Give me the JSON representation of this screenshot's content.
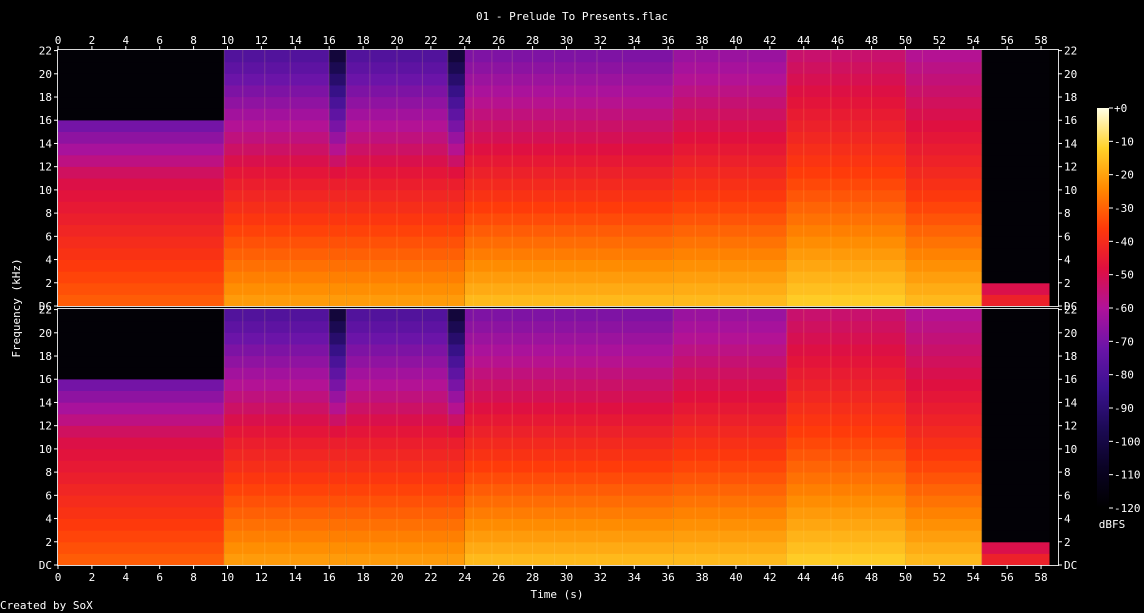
{
  "chart_data": {
    "type": "heatmap",
    "title": "01 - Prelude To Presents.flac",
    "xlabel": "Time (s)",
    "ylabel": "Frequency (kHz)",
    "colorbar_label": "dBFS",
    "footer": "Created by SoX",
    "x_ticks": [
      "0",
      "2",
      "4",
      "6",
      "8",
      "10",
      "12",
      "14",
      "16",
      "18",
      "20",
      "22",
      "24",
      "26",
      "28",
      "30",
      "32",
      "34",
      "36",
      "38",
      "40",
      "42",
      "44",
      "46",
      "48",
      "50",
      "52",
      "54",
      "56",
      "58"
    ],
    "xlim": [
      0,
      59
    ],
    "y_ticks": [
      "DC",
      "2",
      "4",
      "6",
      "8",
      "10",
      "12",
      "14",
      "16",
      "18",
      "20",
      "22"
    ],
    "ylim": [
      0,
      22.05
    ],
    "colorbar_ticks": [
      "+0",
      "-10",
      "-20",
      "-30",
      "-40",
      "-50",
      "-60",
      "-70",
      "-80",
      "-90",
      "-100",
      "-110",
      "-120"
    ],
    "colorbar_range": [
      -120,
      0
    ],
    "channels": [
      "left",
      "right"
    ],
    "segment_boundaries_s": [
      9.8,
      10.9,
      12.2,
      13.7,
      16.0,
      17.0,
      18.4,
      20.0,
      21.5,
      23.0,
      24.5,
      25.6,
      26.8,
      28.0,
      29.3,
      30.5,
      31.8,
      33.3,
      36.3,
      37.6,
      39.0,
      40.7,
      43.0,
      44.0,
      45.6,
      46.8,
      48.0,
      50.0,
      51.0,
      54.5
    ],
    "level_profile_db": [
      {
        "t_start": 0,
        "t_end": 9.8,
        "low_db": -30,
        "mid_db": -50,
        "high_db": -100,
        "cutoff_khz": 16.5
      },
      {
        "t_start": 9.8,
        "t_end": 16.0,
        "low_db": -20,
        "mid_db": -45,
        "high_db": -80,
        "cutoff_khz": 22
      },
      {
        "t_start": 16.0,
        "t_end": 17.0,
        "low_db": -20,
        "mid_db": -45,
        "high_db": -105,
        "cutoff_khz": 22
      },
      {
        "t_start": 17.0,
        "t_end": 23.0,
        "low_db": -20,
        "mid_db": -45,
        "high_db": -80,
        "cutoff_khz": 22
      },
      {
        "t_start": 23.0,
        "t_end": 24.0,
        "low_db": -20,
        "mid_db": -45,
        "high_db": -105,
        "cutoff_khz": 22
      },
      {
        "t_start": 24.0,
        "t_end": 36.3,
        "low_db": -15,
        "mid_db": -42,
        "high_db": -70,
        "cutoff_khz": 22
      },
      {
        "t_start": 36.3,
        "t_end": 43.0,
        "low_db": -15,
        "mid_db": -40,
        "high_db": -65,
        "cutoff_khz": 22
      },
      {
        "t_start": 43.0,
        "t_end": 50.0,
        "low_db": -12,
        "mid_db": -35,
        "high_db": -55,
        "cutoff_khz": 22
      },
      {
        "t_start": 50.0,
        "t_end": 54.5,
        "low_db": -15,
        "mid_db": -40,
        "high_db": -60,
        "cutoff_khz": 22
      },
      {
        "t_start": 54.5,
        "t_end": 58.5,
        "low_db": -40,
        "mid_db": -110,
        "high_db": -120,
        "cutoff_khz": 2
      }
    ],
    "grid": false
  }
}
